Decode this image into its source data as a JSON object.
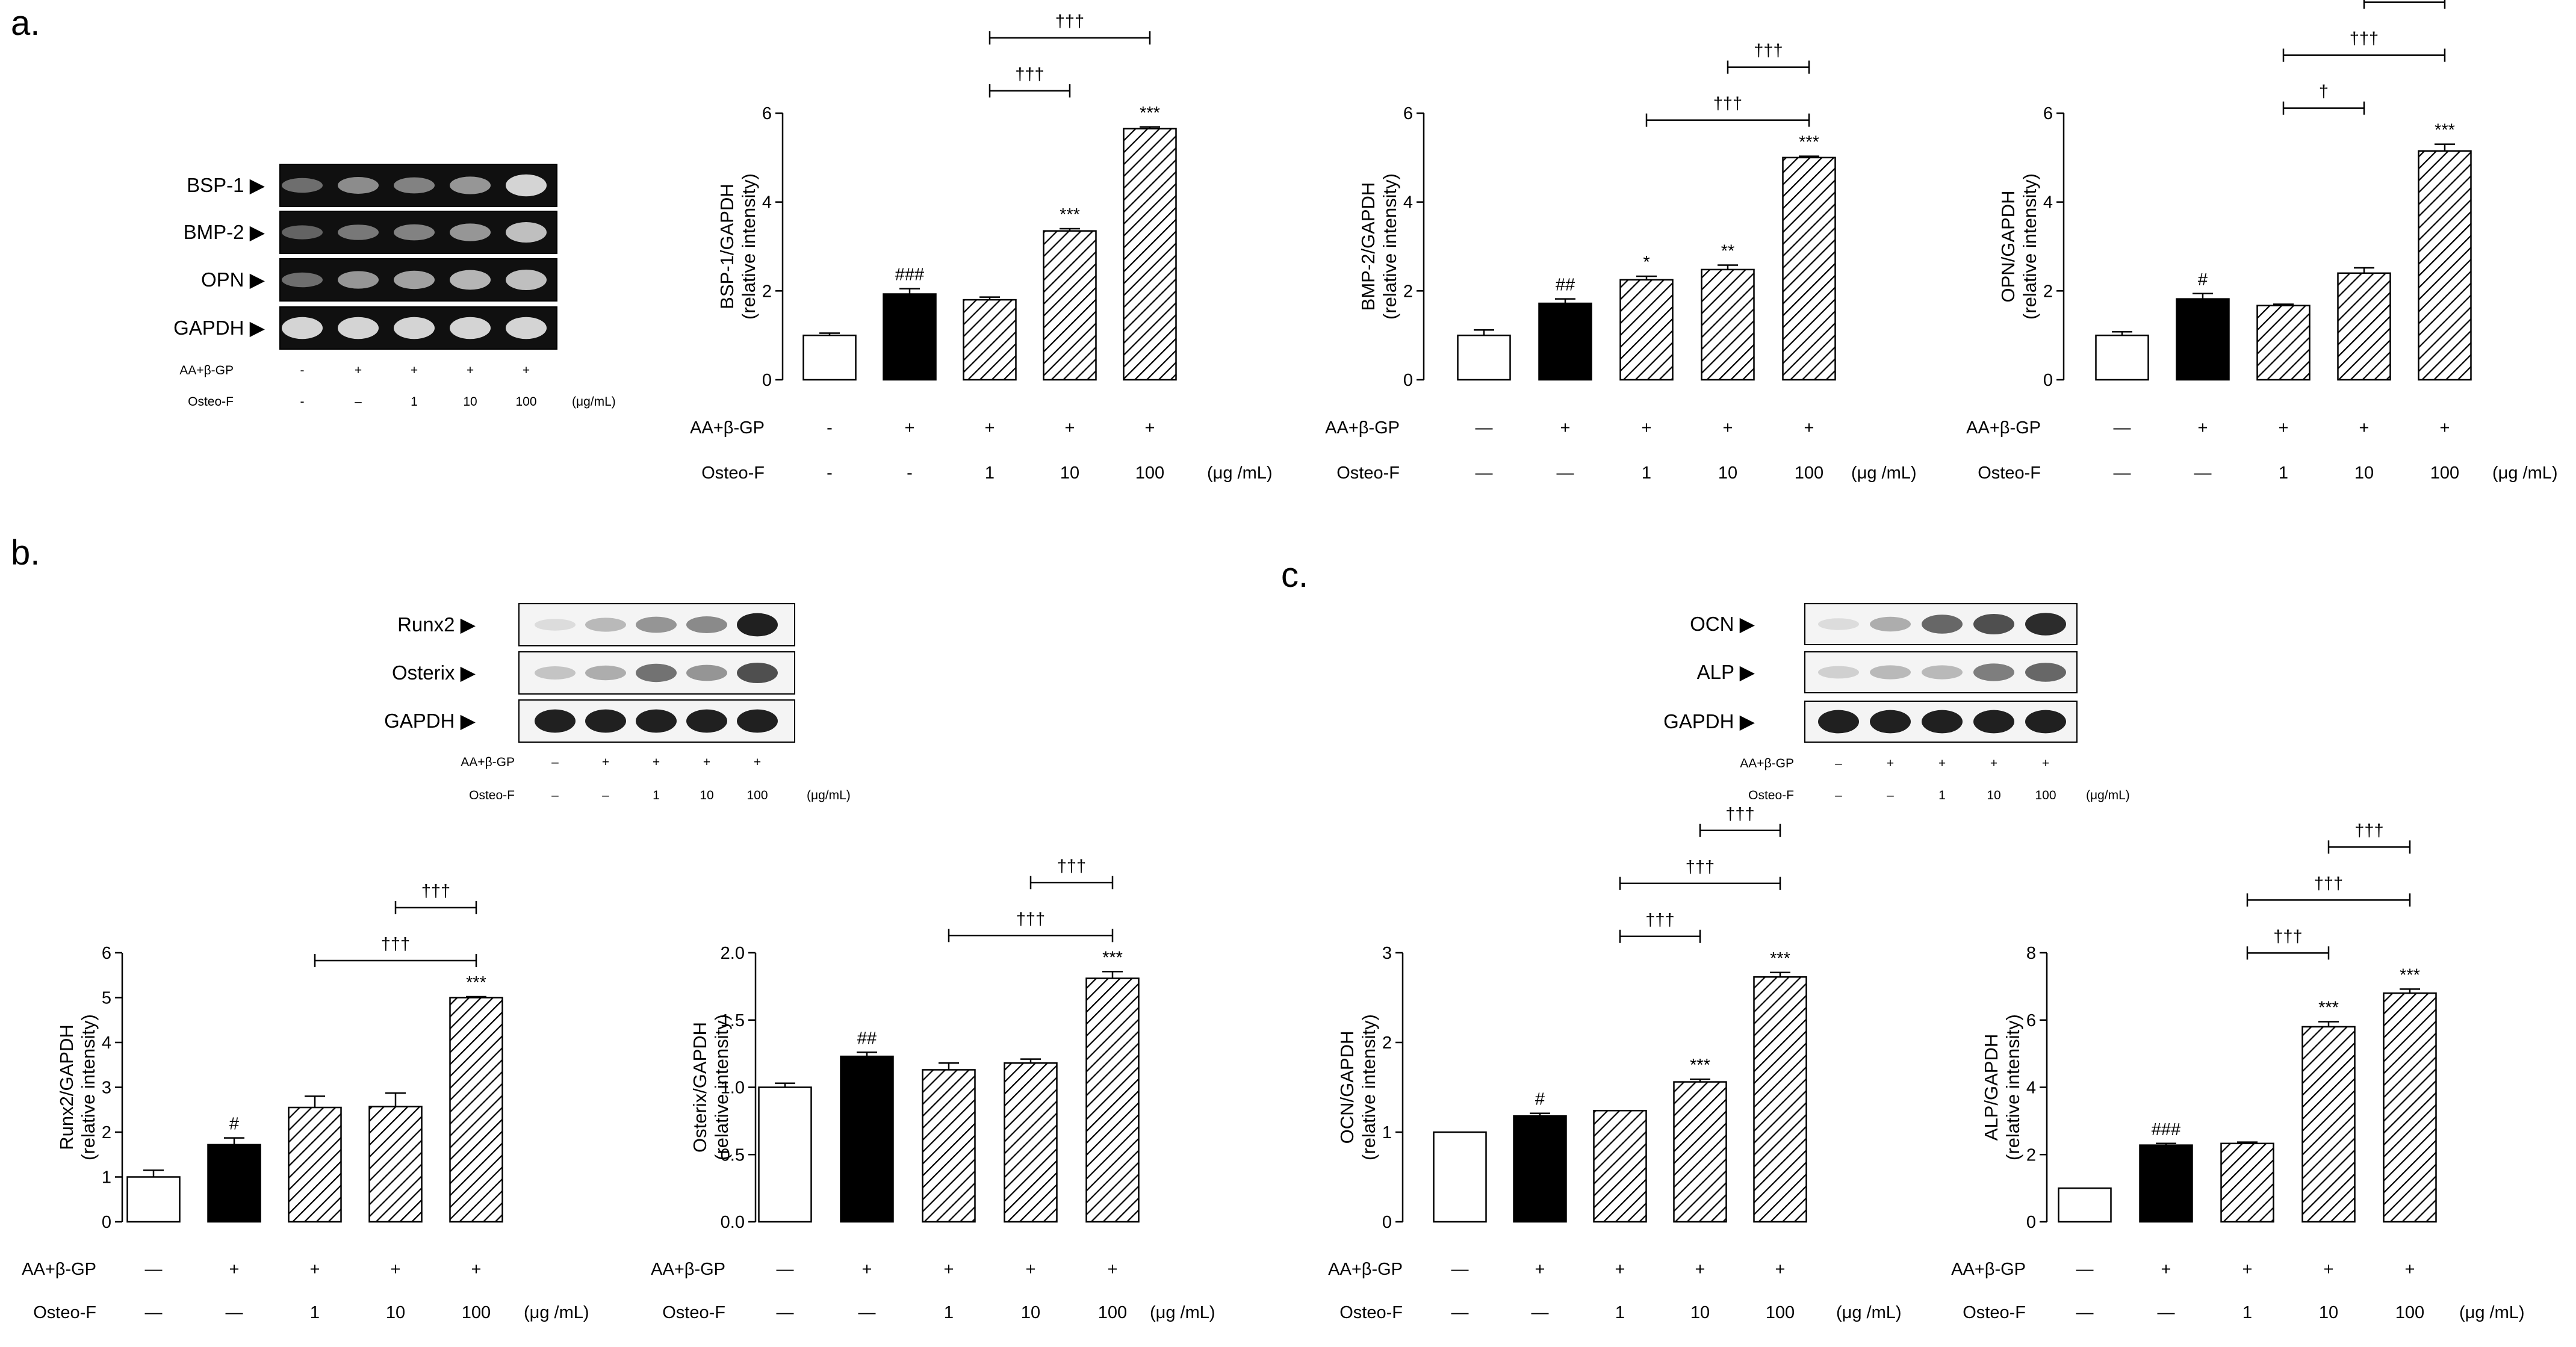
{
  "figure": {
    "panels": [
      {
        "letter": "a."
      },
      {
        "letter": "b."
      },
      {
        "letter": "c."
      }
    ],
    "colors": {
      "control_fill": "#ffffff",
      "treatment_fill": "#000000",
      "hatch_stroke": "#000000",
      "blot_bg_dark": "#101010",
      "band_light": "#d8d8d8",
      "blot_bg_light": "#f4f4f4",
      "band_dark": "#1a1a1a"
    }
  },
  "blots": [
    {
      "id": "blot-a",
      "style": "gel",
      "labels": [
        "BSP-1 ▶",
        "BMP-2 ▶",
        "OPN ▶",
        "GAPDH ▶"
      ],
      "rows": [
        {
          "intensity": [
            0.35,
            0.5,
            0.45,
            0.55,
            0.85
          ]
        },
        {
          "intensity": [
            0.3,
            0.4,
            0.45,
            0.55,
            0.75
          ]
        },
        {
          "intensity": [
            0.35,
            0.55,
            0.6,
            0.7,
            0.75
          ]
        },
        {
          "intensity": [
            0.85,
            0.85,
            0.85,
            0.85,
            0.85
          ]
        }
      ],
      "cond1_label": "AA+β-GP",
      "cond1": [
        "-",
        "+",
        "+",
        "+",
        "+"
      ],
      "cond2_label": "Osteo-F",
      "cond2": [
        "-",
        "–",
        "1",
        "10",
        "100"
      ],
      "unit": "(μg/mL)"
    },
    {
      "id": "blot-b",
      "style": "western",
      "labels": [
        "Runx2 ▶",
        "Osterix ▶",
        "GAPDH ▶"
      ],
      "rows": [
        {
          "intensity": [
            0.15,
            0.3,
            0.45,
            0.5,
            0.95
          ]
        },
        {
          "intensity": [
            0.25,
            0.35,
            0.6,
            0.45,
            0.75
          ]
        },
        {
          "intensity": [
            0.95,
            0.95,
            0.95,
            0.95,
            0.95
          ]
        }
      ],
      "cond1_label": "AA+β-GP",
      "cond1": [
        "–",
        "+",
        "+",
        "+",
        "+"
      ],
      "cond2_label": "Osteo-F",
      "cond2": [
        "–",
        "–",
        "1",
        "10",
        "100"
      ],
      "unit": "(μg/mL)"
    },
    {
      "id": "blot-c",
      "style": "western",
      "labels": [
        "OCN ▶",
        "ALP ▶",
        "GAPDH ▶"
      ],
      "rows": [
        {
          "intensity": [
            0.15,
            0.35,
            0.65,
            0.75,
            0.9
          ]
        },
        {
          "intensity": [
            0.2,
            0.3,
            0.3,
            0.55,
            0.65
          ]
        },
        {
          "intensity": [
            0.95,
            0.95,
            0.95,
            0.95,
            0.95
          ]
        }
      ],
      "cond1_label": "AA+β-GP",
      "cond1": [
        "–",
        "+",
        "+",
        "+",
        "+"
      ],
      "cond2_label": "Osteo-F",
      "cond2": [
        "–",
        "–",
        "1",
        "10",
        "100"
      ],
      "unit": "(μg/mL)"
    }
  ],
  "chart_data": [
    {
      "id": "bsp1",
      "type": "bar",
      "ylabel_line1": "BSP-1/GAPDH",
      "ylabel_line2": "(relative intensity)",
      "ylim": [
        0,
        6
      ],
      "yticks": [
        "0",
        "2",
        "4",
        "6"
      ],
      "ytick_values": [
        0,
        2,
        4,
        6
      ],
      "categories": [
        "Control",
        "AA+β-GP",
        "Osteo-F 1",
        "Osteo-F 10",
        "Osteo-F 100"
      ],
      "values": [
        1.0,
        1.93,
        1.8,
        3.35,
        5.65
      ],
      "errors": [
        0.05,
        0.12,
        0.06,
        0.05,
        0.04
      ],
      "fills": [
        "white",
        "black",
        "hatch",
        "hatch",
        "hatch"
      ],
      "bar_labels": [
        "",
        "###",
        "",
        "***",
        "***"
      ],
      "brackets": [
        {
          "from": 2,
          "to": 3,
          "label": "†††"
        },
        {
          "from": 2,
          "to": 4,
          "label": "†††"
        },
        {
          "from": 3,
          "to": 4,
          "label": "†††"
        }
      ],
      "cond1_label": "AA+β-GP",
      "cond1": [
        "-",
        "+",
        "+",
        "+",
        "+"
      ],
      "cond2_label": "Osteo-F",
      "cond2": [
        "-",
        "-",
        "1",
        "10",
        "100"
      ],
      "unit": "(μg /mL)"
    },
    {
      "id": "bmp2",
      "type": "bar",
      "ylabel_line1": "BMP-2/GAPDH",
      "ylabel_line2": "(relative intensity)",
      "ylim": [
        0,
        6
      ],
      "yticks": [
        "0",
        "2",
        "4",
        "6"
      ],
      "ytick_values": [
        0,
        2,
        4,
        6
      ],
      "categories": [
        "Control",
        "AA+β-GP",
        "Osteo-F 1",
        "Osteo-F 10",
        "Osteo-F 100"
      ],
      "values": [
        1.0,
        1.72,
        2.25,
        2.48,
        5.0
      ],
      "errors": [
        0.12,
        0.1,
        0.08,
        0.1,
        0.03
      ],
      "fills": [
        "white",
        "black",
        "hatch",
        "hatch",
        "hatch"
      ],
      "bar_labels": [
        "",
        "##",
        "*",
        "**",
        "***"
      ],
      "brackets": [
        {
          "from": 2,
          "to": 4,
          "label": "†††"
        },
        {
          "from": 3,
          "to": 4,
          "label": "†††"
        }
      ],
      "cond1_label": "AA+β-GP",
      "cond1": [
        "—",
        "+",
        "+",
        "+",
        "+"
      ],
      "cond2_label": "Osteo-F",
      "cond2": [
        "—",
        "—",
        "1",
        "10",
        "100"
      ],
      "unit": "(μg /mL)"
    },
    {
      "id": "opn",
      "type": "bar",
      "ylabel_line1": "OPN/GAPDH",
      "ylabel_line2": "(relative intensity)",
      "ylim": [
        0,
        6
      ],
      "yticks": [
        "0",
        "2",
        "4",
        "6"
      ],
      "ytick_values": [
        0,
        2,
        4,
        6
      ],
      "categories": [
        "Control",
        "AA+β-GP",
        "Osteo-F 1",
        "Osteo-F 10",
        "Osteo-F 100"
      ],
      "values": [
        1.0,
        1.82,
        1.67,
        2.4,
        5.15
      ],
      "errors": [
        0.08,
        0.12,
        0.03,
        0.12,
        0.15
      ],
      "fills": [
        "white",
        "black",
        "hatch",
        "hatch",
        "hatch"
      ],
      "bar_labels": [
        "",
        "#",
        "",
        "",
        "***"
      ],
      "brackets": [
        {
          "from": 2,
          "to": 3,
          "label": "†"
        },
        {
          "from": 2,
          "to": 4,
          "label": "†††"
        },
        {
          "from": 3,
          "to": 4,
          "label": "†††"
        }
      ],
      "cond1_label": "AA+β-GP",
      "cond1": [
        "—",
        "+",
        "+",
        "+",
        "+"
      ],
      "cond2_label": "Osteo-F",
      "cond2": [
        "—",
        "—",
        "1",
        "10",
        "100"
      ],
      "unit": "(μg /mL)"
    },
    {
      "id": "runx2",
      "type": "bar",
      "ylabel_line1": "Runx2/GAPDH",
      "ylabel_line2": "(relative intensity)",
      "ylim": [
        0,
        6
      ],
      "yticks": [
        "0",
        "1",
        "2",
        "3",
        "4",
        "5",
        "6"
      ],
      "ytick_values": [
        0,
        1,
        2,
        3,
        4,
        5,
        6
      ],
      "categories": [
        "Control",
        "AA+β-GP",
        "Osteo-F 1",
        "Osteo-F 10",
        "Osteo-F 100"
      ],
      "values": [
        1.0,
        1.72,
        2.55,
        2.57,
        5.0
      ],
      "errors": [
        0.15,
        0.15,
        0.25,
        0.3,
        0.02
      ],
      "fills": [
        "white",
        "black",
        "hatch",
        "hatch",
        "hatch"
      ],
      "bar_labels": [
        "",
        "#",
        "",
        "",
        "***"
      ],
      "brackets": [
        {
          "from": 2,
          "to": 4,
          "label": "†††"
        },
        {
          "from": 3,
          "to": 4,
          "label": "†††"
        }
      ],
      "cond1_label": "AA+β-GP",
      "cond1": [
        "—",
        "+",
        "+",
        "+",
        "+"
      ],
      "cond2_label": "Osteo-F",
      "cond2": [
        "—",
        "—",
        "1",
        "10",
        "100"
      ],
      "unit": "(μg /mL)"
    },
    {
      "id": "osterix",
      "type": "bar",
      "ylabel_line1": "Osterix/GAPDH",
      "ylabel_line2": "(relative intensity)",
      "ylim": [
        0,
        2
      ],
      "yticks": [
        "0.0",
        "0.5",
        "1.0",
        "1.5",
        "2.0"
      ],
      "ytick_values": [
        0,
        0.5,
        1,
        1.5,
        2
      ],
      "categories": [
        "Control",
        "AA+β-GP",
        "Osteo-F 1",
        "Osteo-F 10",
        "Osteo-F 100"
      ],
      "values": [
        1.0,
        1.23,
        1.13,
        1.18,
        1.81
      ],
      "errors": [
        0.03,
        0.03,
        0.05,
        0.03,
        0.05
      ],
      "fills": [
        "white",
        "black",
        "hatch",
        "hatch",
        "hatch"
      ],
      "bar_labels": [
        "",
        "##",
        "",
        "",
        "***"
      ],
      "brackets": [
        {
          "from": 2,
          "to": 4,
          "label": "†††"
        },
        {
          "from": 3,
          "to": 4,
          "label": "†††"
        }
      ],
      "cond1_label": "AA+β-GP",
      "cond1": [
        "—",
        "+",
        "+",
        "+",
        "+"
      ],
      "cond2_label": "Osteo-F",
      "cond2": [
        "—",
        "—",
        "1",
        "10",
        "100"
      ],
      "unit": "(μg /mL)"
    },
    {
      "id": "ocn",
      "type": "bar",
      "ylabel_line1": "OCN/GAPDH",
      "ylabel_line2": "(relative intensity)",
      "ylim": [
        0,
        3
      ],
      "yticks": [
        "0",
        "1",
        "2",
        "3"
      ],
      "ytick_values": [
        0,
        1,
        2,
        3
      ],
      "categories": [
        "Control",
        "AA+β-GP",
        "Osteo-F 1",
        "Osteo-F 10",
        "Osteo-F 100"
      ],
      "values": [
        1.0,
        1.18,
        1.24,
        1.56,
        2.73
      ],
      "errors": [
        0.0,
        0.03,
        0.0,
        0.03,
        0.05
      ],
      "fills": [
        "white",
        "black",
        "hatch",
        "hatch",
        "hatch"
      ],
      "bar_labels": [
        "",
        "#",
        "",
        "***",
        "***"
      ],
      "brackets": [
        {
          "from": 2,
          "to": 3,
          "label": "†††"
        },
        {
          "from": 2,
          "to": 4,
          "label": "†††"
        },
        {
          "from": 3,
          "to": 4,
          "label": "†††"
        }
      ],
      "cond1_label": "AA+β-GP",
      "cond1": [
        "—",
        "+",
        "+",
        "+",
        "+"
      ],
      "cond2_label": "Osteo-F",
      "cond2": [
        "—",
        "—",
        "1",
        "10",
        "100"
      ],
      "unit": "(μg /mL)"
    },
    {
      "id": "alp",
      "type": "bar",
      "ylabel_line1": "ALP/GAPDH",
      "ylabel_line2": "(relative intensity)",
      "ylim": [
        0,
        8
      ],
      "yticks": [
        "0",
        "2",
        "4",
        "6",
        "8"
      ],
      "ytick_values": [
        0,
        2,
        4,
        6,
        8
      ],
      "categories": [
        "Control",
        "AA+β-GP",
        "Osteo-F 1",
        "Osteo-F 10",
        "Osteo-F 100"
      ],
      "values": [
        1.0,
        2.28,
        2.33,
        5.8,
        6.8
      ],
      "errors": [
        0.0,
        0.05,
        0.04,
        0.15,
        0.12
      ],
      "fills": [
        "white",
        "black",
        "hatch",
        "hatch",
        "hatch"
      ],
      "bar_labels": [
        "",
        "###",
        "",
        "***",
        "***"
      ],
      "brackets": [
        {
          "from": 2,
          "to": 3,
          "label": "†††"
        },
        {
          "from": 2,
          "to": 4,
          "label": "†††"
        },
        {
          "from": 3,
          "to": 4,
          "label": "†††"
        }
      ],
      "cond1_label": "AA+β-GP",
      "cond1": [
        "—",
        "+",
        "+",
        "+",
        "+"
      ],
      "cond2_label": "Osteo-F",
      "cond2": [
        "—",
        "—",
        "1",
        "10",
        "100"
      ],
      "unit": "(μg /mL)"
    }
  ]
}
